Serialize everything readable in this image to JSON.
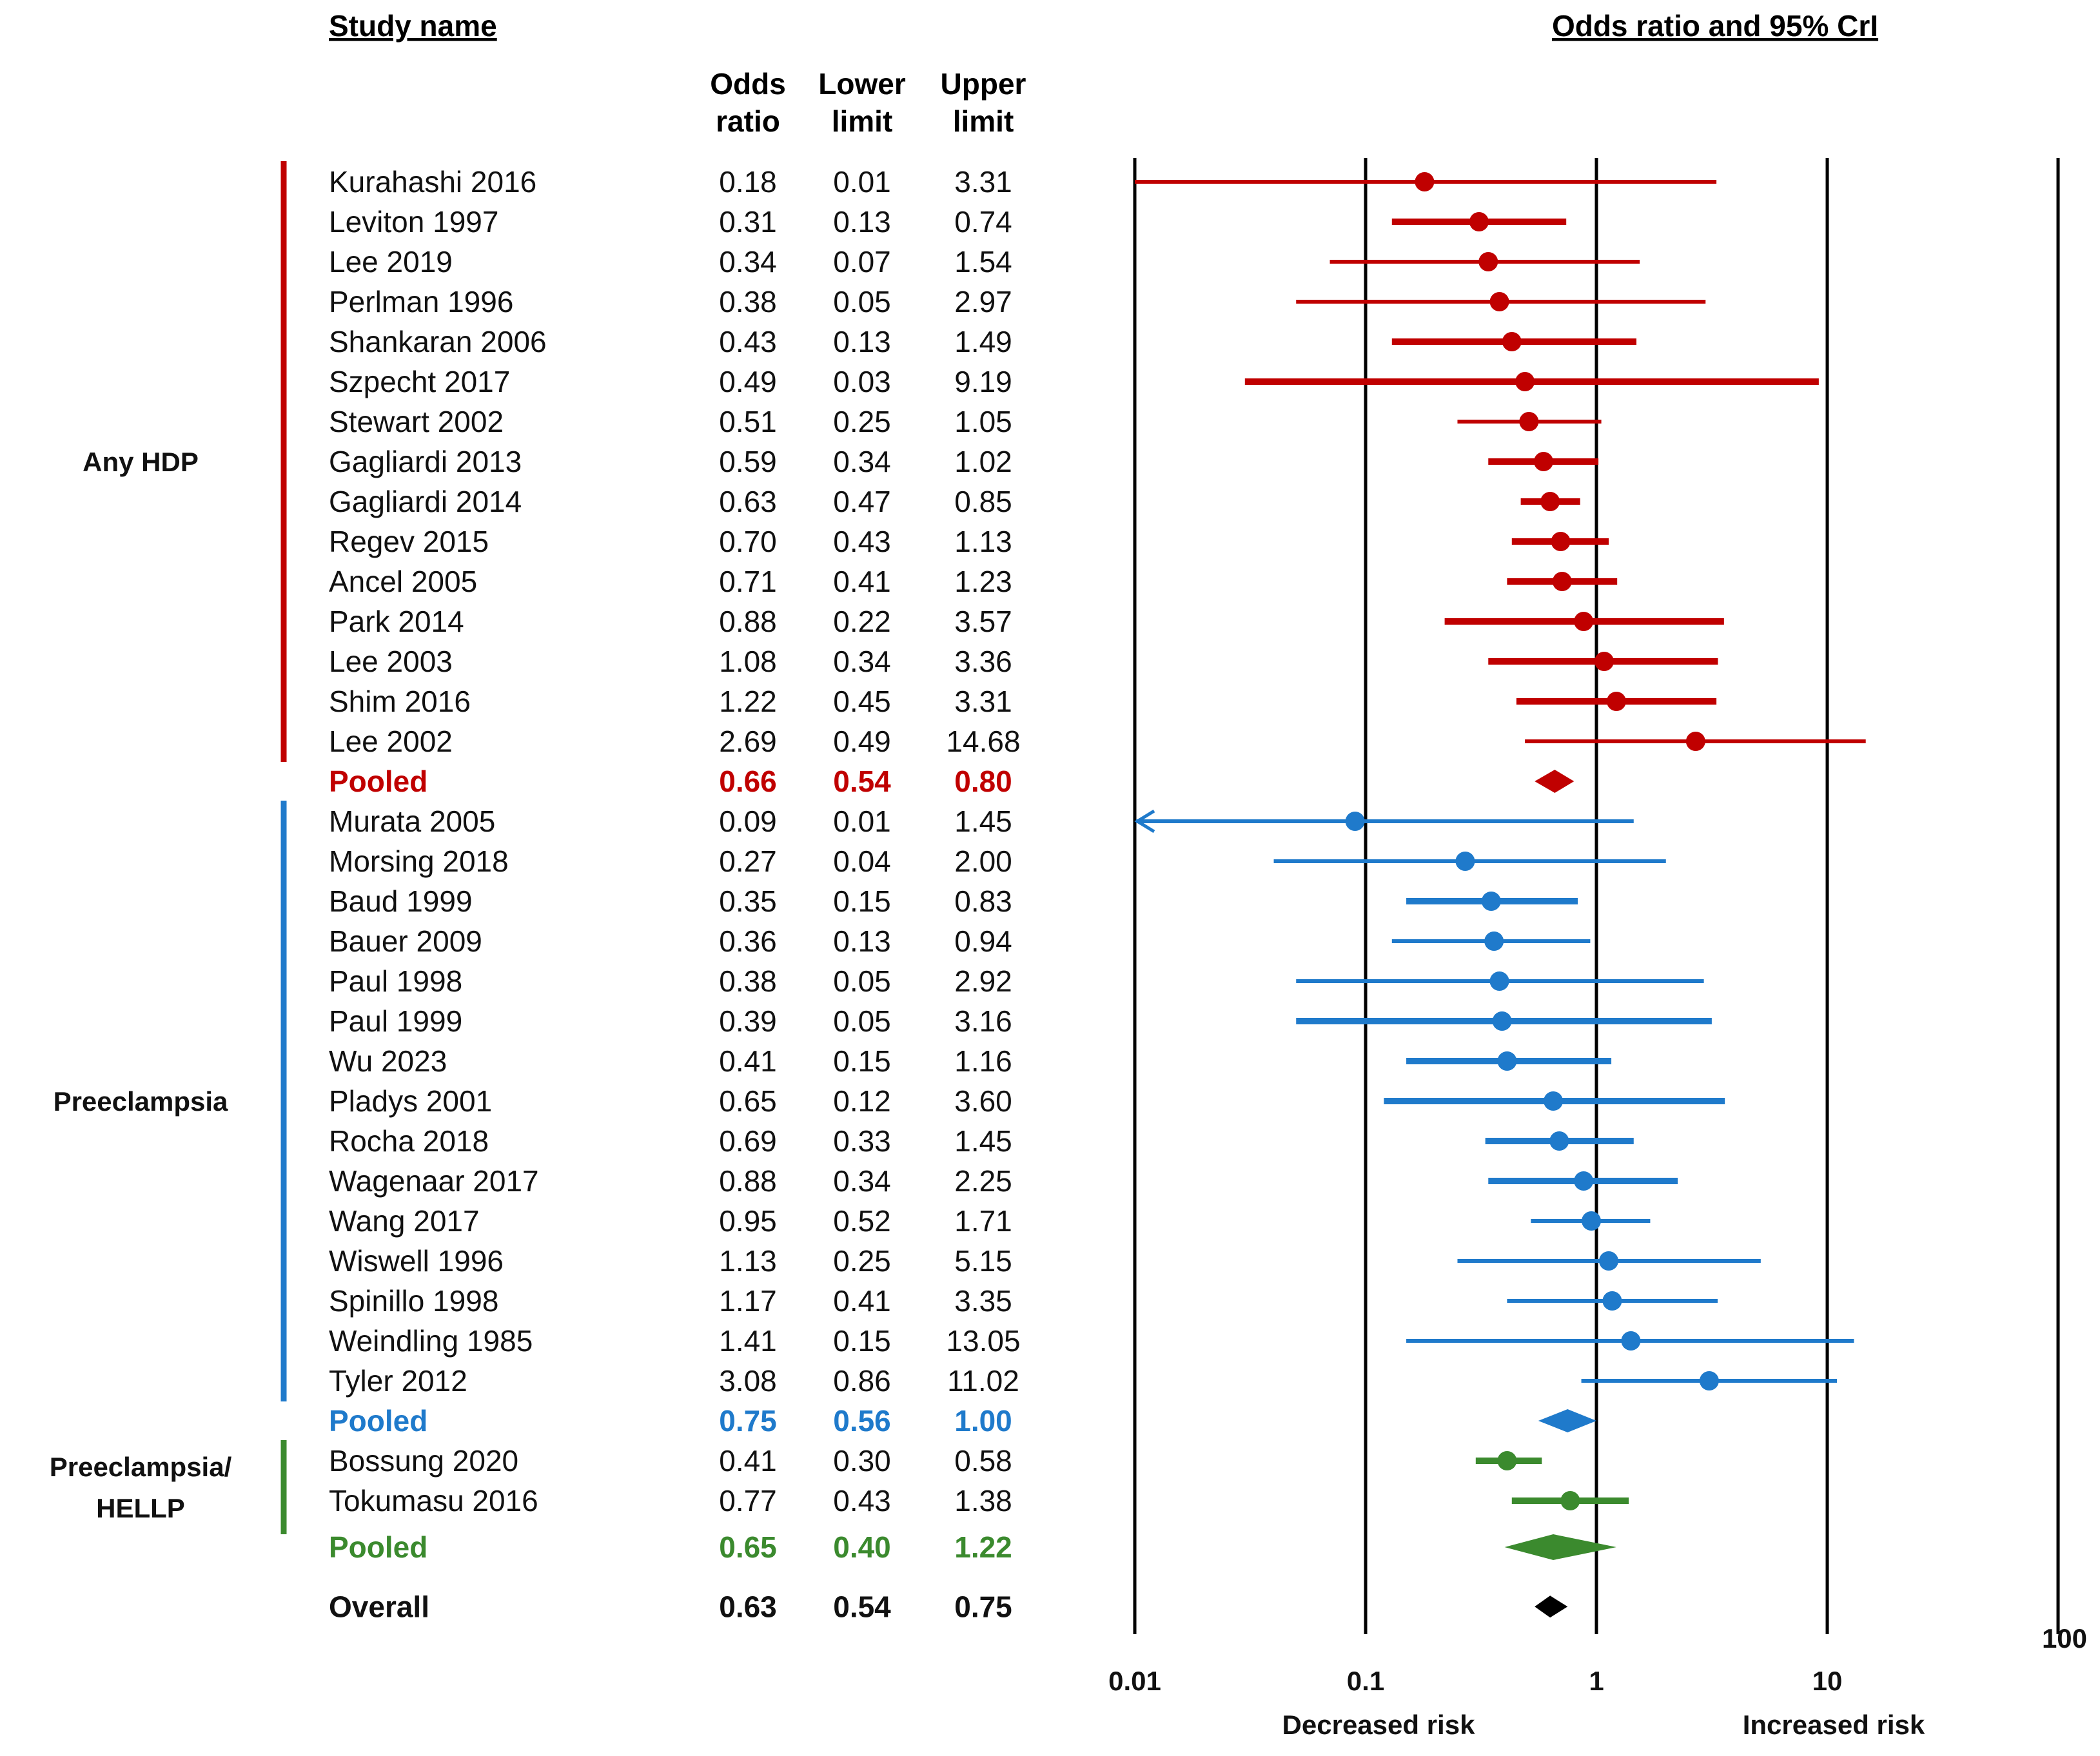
{
  "chart_data": {
    "type": "forest",
    "title": "Odds ratio and 95% CrI",
    "study_header": "Study name",
    "column_headers": {
      "odds": [
        "Odds",
        "ratio"
      ],
      "lower": [
        "Lower",
        "limit"
      ],
      "upper": [
        "Upper",
        "limit"
      ]
    },
    "x_scale": "log",
    "xlim": [
      0.01,
      100
    ],
    "x_ticks": [
      "0.01",
      "0.1",
      "1",
      "10",
      "100"
    ],
    "x_tick_values": [
      0.01,
      0.1,
      1,
      10,
      100
    ],
    "left_label": "Decreased risk",
    "right_label": "Increased risk",
    "colors": {
      "any_hdp": "#c00000",
      "preeclampsia": "#1f7acb",
      "hellp": "#3b8a2e",
      "overall": "#000000"
    },
    "groups": [
      {
        "label": [
          "Any HDP"
        ],
        "color_key": "any_hdp",
        "diamond_color_key": "any_hdp",
        "studies": [
          {
            "name": "Kurahashi 2016",
            "or": "0.18",
            "lo": "0.01",
            "hi": "3.31",
            "weight": 1
          },
          {
            "name": "Leviton 1997",
            "or": "0.31",
            "lo": "0.13",
            "hi": "0.74",
            "weight": 2
          },
          {
            "name": "Lee 2019",
            "or": "0.34",
            "lo": "0.07",
            "hi": "1.54",
            "weight": 1
          },
          {
            "name": "Perlman 1996",
            "or": "0.38",
            "lo": "0.05",
            "hi": "2.97",
            "weight": 1
          },
          {
            "name": "Shankaran 2006",
            "or": "0.43",
            "lo": "0.13",
            "hi": "1.49",
            "weight": 2
          },
          {
            "name": "Szpecht 2017",
            "or": "0.49",
            "lo": "0.03",
            "hi": "9.19",
            "weight": 2
          },
          {
            "name": "Stewart 2002",
            "or": "0.51",
            "lo": "0.25",
            "hi": "1.05",
            "weight": 1
          },
          {
            "name": "Gagliardi 2013",
            "or": "0.59",
            "lo": "0.34",
            "hi": "1.02",
            "weight": 2
          },
          {
            "name": "Gagliardi 2014",
            "or": "0.63",
            "lo": "0.47",
            "hi": "0.85",
            "weight": 2
          },
          {
            "name": "Regev 2015",
            "or": "0.70",
            "lo": "0.43",
            "hi": "1.13",
            "weight": 2
          },
          {
            "name": "Ancel 2005",
            "or": "0.71",
            "lo": "0.41",
            "hi": "1.23",
            "weight": 2
          },
          {
            "name": "Park 2014",
            "or": "0.88",
            "lo": "0.22",
            "hi": "3.57",
            "weight": 2
          },
          {
            "name": "Lee 2003",
            "or": "1.08",
            "lo": "0.34",
            "hi": "3.36",
            "weight": 2
          },
          {
            "name": "Shim 2016",
            "or": "1.22",
            "lo": "0.45",
            "hi": "3.31",
            "weight": 2
          },
          {
            "name": "Lee 2002",
            "or": "2.69",
            "lo": "0.49",
            "hi": "14.68",
            "weight": 1
          }
        ],
        "pooled": {
          "name": "Pooled",
          "or": "0.66",
          "lo": "0.54",
          "hi": "0.80"
        }
      },
      {
        "label": [
          "Preeclampsia"
        ],
        "color_key": "preeclampsia",
        "diamond_color_key": "preeclampsia",
        "studies": [
          {
            "name": "Murata 2005",
            "or": "0.09",
            "lo": "0.01",
            "hi": "1.45",
            "weight": 1,
            "arrow_left": true
          },
          {
            "name": "Morsing 2018",
            "or": "0.27",
            "lo": "0.04",
            "hi": "2.00",
            "weight": 1
          },
          {
            "name": "Baud 1999",
            "or": "0.35",
            "lo": "0.15",
            "hi": "0.83",
            "weight": 2
          },
          {
            "name": "Bauer 2009",
            "or": "0.36",
            "lo": "0.13",
            "hi": "0.94",
            "weight": 1
          },
          {
            "name": "Paul 1998",
            "or": "0.38",
            "lo": "0.05",
            "hi": "2.92",
            "weight": 1
          },
          {
            "name": "Paul 1999",
            "or": "0.39",
            "lo": "0.05",
            "hi": "3.16",
            "weight": 2
          },
          {
            "name": "Wu 2023",
            "or": "0.41",
            "lo": "0.15",
            "hi": "1.16",
            "weight": 2
          },
          {
            "name": "Pladys 2001",
            "or": "0.65",
            "lo": "0.12",
            "hi": "3.60",
            "weight": 2
          },
          {
            "name": "Rocha 2018",
            "or": "0.69",
            "lo": "0.33",
            "hi": "1.45",
            "weight": 2
          },
          {
            "name": "Wagenaar 2017",
            "or": "0.88",
            "lo": "0.34",
            "hi": "2.25",
            "weight": 2
          },
          {
            "name": "Wang 2017",
            "or": "0.95",
            "lo": "0.52",
            "hi": "1.71",
            "weight": 1
          },
          {
            "name": "Wiswell 1996",
            "or": "1.13",
            "lo": "0.25",
            "hi": "5.15",
            "weight": 1
          },
          {
            "name": "Spinillo 1998",
            "or": "1.17",
            "lo": "0.41",
            "hi": "3.35",
            "weight": 1
          },
          {
            "name": "Weindling 1985",
            "or": "1.41",
            "lo": "0.15",
            "hi": "13.05",
            "weight": 1
          },
          {
            "name": "Tyler 2012",
            "or": "3.08",
            "lo": "0.86",
            "hi": "11.02",
            "weight": 1
          }
        ],
        "pooled": {
          "name": "Pooled",
          "or": "0.75",
          "lo": "0.56",
          "hi": "1.00"
        }
      },
      {
        "label": [
          "Preeclampsia/",
          "HELLP"
        ],
        "color_key": "hellp",
        "diamond_color_key": "hellp",
        "studies": [
          {
            "name": "Bossung 2020",
            "or": "0.41",
            "lo": "0.30",
            "hi": "0.58",
            "weight": 2
          },
          {
            "name": "Tokumasu 2016",
            "or": "0.77",
            "lo": "0.43",
            "hi": "1.38",
            "weight": 2
          }
        ],
        "pooled": {
          "name": "Pooled",
          "or": "0.65",
          "lo": "0.40",
          "hi": "1.22"
        }
      }
    ],
    "overall": {
      "name": "Overall",
      "or": "0.63",
      "lo": "0.54",
      "hi": "0.75"
    }
  }
}
